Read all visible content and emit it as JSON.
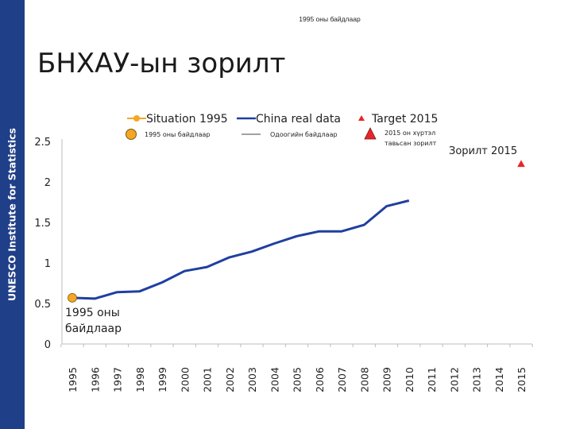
{
  "sidebar": {
    "text": "UNESCO Institute for Statistics"
  },
  "top_caption": "1995 оны байдлаар",
  "page_title": "БНХАУ-ын зорилт",
  "legend": {
    "situation": {
      "label": "Situation 1995",
      "sublabel": "1995 оны байдлаар"
    },
    "china": {
      "label": "China real data",
      "sublabel": "Одоогийн байдлаар"
    },
    "target": {
      "label": "Target 2015",
      "sublabel_line1": "2015 он хүртэл",
      "sublabel_line2": "тавьсан зорилт"
    }
  },
  "annotations": {
    "start_line1": "1995 оны",
    "start_line2": "байдлаар",
    "target_label": "Зорилт 2015"
  },
  "colors": {
    "sidebar": "#1f3f88",
    "line": "#1f3fa0",
    "marker": "#f5a623",
    "target": "#e8262a"
  },
  "chart_data": {
    "type": "line",
    "categories": [
      "1995",
      "1996",
      "1997",
      "1998",
      "1999",
      "2000",
      "2001",
      "2002",
      "2003",
      "2004",
      "2005",
      "2006",
      "2007",
      "2008",
      "2009",
      "2010",
      "2011",
      "2012",
      "2013",
      "2014",
      "2015"
    ],
    "ylim": [
      0,
      2.5
    ],
    "yticks": [
      "0",
      "0.5",
      "1",
      "1.5",
      "2",
      "2.5"
    ],
    "ytick_values": [
      0,
      0.5,
      1,
      1.5,
      2,
      2.5
    ],
    "series": [
      {
        "name": "China real data",
        "values": [
          0.57,
          0.56,
          0.64,
          0.65,
          0.76,
          0.9,
          0.95,
          1.07,
          1.14,
          1.24,
          1.33,
          1.39,
          1.39,
          1.47,
          1.7,
          1.77,
          null,
          null,
          null,
          null,
          null
        ]
      },
      {
        "name": "Situation 1995",
        "values": [
          0.57,
          null,
          null,
          null,
          null,
          null,
          null,
          null,
          null,
          null,
          null,
          null,
          null,
          null,
          null,
          null,
          null,
          null,
          null,
          null,
          null
        ]
      },
      {
        "name": "Target 2015",
        "values": [
          null,
          null,
          null,
          null,
          null,
          null,
          null,
          null,
          null,
          null,
          null,
          null,
          null,
          null,
          null,
          null,
          null,
          null,
          null,
          null,
          2.22
        ]
      }
    ]
  }
}
